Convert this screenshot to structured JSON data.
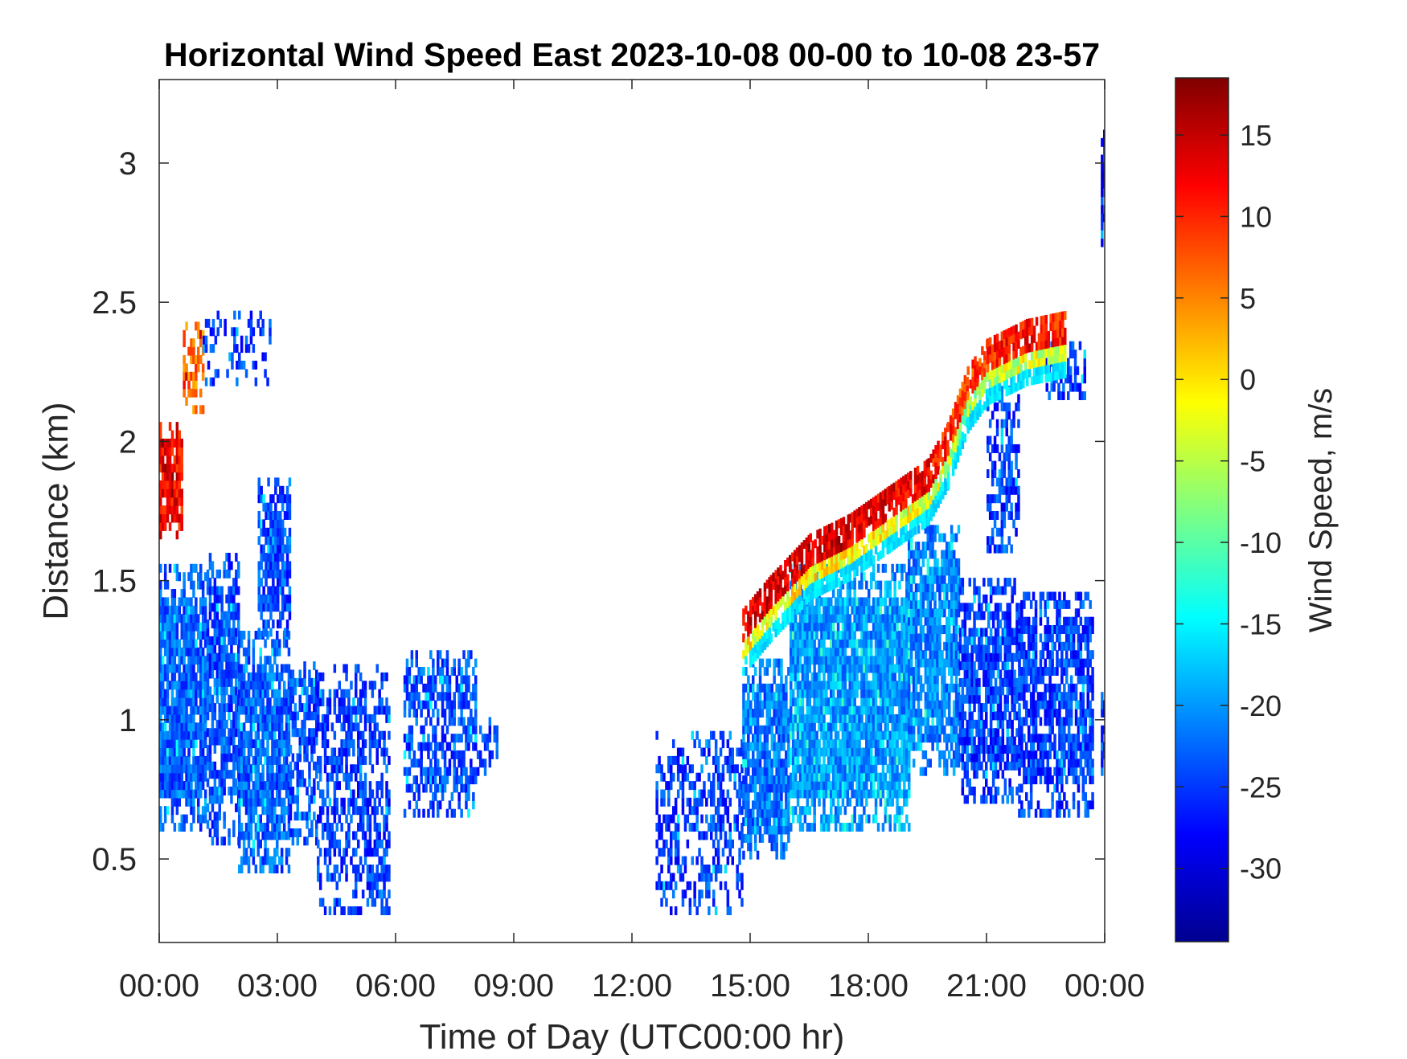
{
  "chart_data": {
    "type": "heatmap",
    "title": "Horizontal Wind Speed East 2023-10-08 00-00 to 10-08 23-57",
    "xlabel": "Time of Day (UTC00:00 hr)",
    "ylabel": "Distance (km)",
    "colorbar_label": "Wind Speed, m/s",
    "xlim": [
      0,
      24
    ],
    "ylim": [
      0.2,
      3.3
    ],
    "clim": [
      -34.5,
      18.5
    ],
    "colormap": "jet",
    "x_ticks": [
      0,
      3,
      6,
      9,
      12,
      15,
      18,
      21,
      24
    ],
    "x_tick_labels": [
      "00:00",
      "03:00",
      "06:00",
      "09:00",
      "12:00",
      "15:00",
      "18:00",
      "21:00",
      "00:00"
    ],
    "y_ticks": [
      0.5,
      1,
      1.5,
      2,
      2.5,
      3
    ],
    "y_tick_labels": [
      "0.5",
      "1",
      "1.5",
      "2",
      "2.5",
      "3"
    ],
    "colorbar_ticks": [
      15,
      10,
      5,
      0,
      -5,
      -10,
      -15,
      -20,
      -25,
      -30
    ],
    "colorbar_tick_labels": [
      "15",
      "10",
      "5",
      "0",
      "-5",
      "-10",
      "-15",
      "-20",
      "-25",
      "-30"
    ],
    "regions": [
      {
        "t": [
          0.0,
          1.2
        ],
        "h": [
          0.6,
          1.55
        ],
        "speed": -23,
        "density": 0.92
      },
      {
        "t": [
          1.2,
          2.0
        ],
        "h": [
          0.55,
          1.6
        ],
        "speed": -24,
        "density": 0.8
      },
      {
        "t": [
          2.0,
          3.3
        ],
        "h": [
          0.45,
          1.3
        ],
        "speed": -23,
        "density": 0.85
      },
      {
        "t": [
          2.5,
          3.3
        ],
        "h": [
          1.3,
          1.85
        ],
        "speed": -24,
        "density": 0.8
      },
      {
        "t": [
          3.3,
          4.0
        ],
        "h": [
          0.55,
          1.2
        ],
        "speed": -24,
        "density": 0.65
      },
      {
        "t": [
          4.0,
          5.8
        ],
        "h": [
          0.3,
          1.2
        ],
        "speed": -25,
        "density": 0.55
      },
      {
        "t": [
          6.2,
          8.0
        ],
        "h": [
          0.65,
          1.25
        ],
        "speed": -24,
        "density": 0.6
      },
      {
        "t": [
          8.0,
          8.6
        ],
        "h": [
          0.8,
          1.0
        ],
        "speed": -25,
        "density": 0.4
      },
      {
        "t": [
          12.6,
          14.8
        ],
        "h": [
          0.3,
          0.95
        ],
        "speed": -25,
        "density": 0.45
      },
      {
        "t": [
          14.8,
          16.0
        ],
        "h": [
          0.5,
          1.2
        ],
        "speed": -22,
        "density": 0.85
      },
      {
        "t": [
          16.0,
          19.0
        ],
        "h": [
          0.6,
          1.55
        ],
        "speed": -20,
        "density": 0.92
      },
      {
        "t": [
          19.0,
          20.3
        ],
        "h": [
          0.8,
          1.7
        ],
        "speed": -21,
        "density": 0.85
      },
      {
        "t": [
          20.3,
          21.8
        ],
        "h": [
          0.7,
          1.5
        ],
        "speed": -25,
        "density": 0.75
      },
      {
        "t": [
          21.0,
          21.8
        ],
        "h": [
          1.6,
          2.2
        ],
        "speed": -25,
        "density": 0.55
      },
      {
        "t": [
          21.8,
          23.7
        ],
        "h": [
          0.65,
          1.45
        ],
        "speed": -25,
        "density": 0.75
      },
      {
        "t": [
          22.5,
          23.5
        ],
        "h": [
          2.15,
          2.35
        ],
        "speed": -25,
        "density": 0.55
      },
      {
        "t": [
          0.0,
          0.6
        ],
        "h": [
          1.65,
          2.05
        ],
        "speed": 12,
        "density": 0.85
      },
      {
        "t": [
          0.6,
          1.1
        ],
        "h": [
          2.1,
          2.4
        ],
        "speed": 6,
        "density": 0.65
      },
      {
        "t": [
          1.1,
          2.8
        ],
        "h": [
          2.2,
          2.45
        ],
        "speed": -25,
        "density": 0.3
      },
      {
        "t": [
          23.9,
          24.0
        ],
        "h": [
          2.7,
          3.1
        ],
        "speed": -27,
        "density": 0.9
      },
      {
        "t": [
          23.9,
          24.0
        ],
        "h": [
          0.8,
          1.1
        ],
        "speed": -25,
        "density": 0.9
      }
    ],
    "boundary_layer_top": [
      {
        "t": 14.8,
        "h": 1.28,
        "speed": 14
      },
      {
        "t": 15.5,
        "h": 1.4,
        "speed": 14
      },
      {
        "t": 16.5,
        "h": 1.55,
        "speed": 14
      },
      {
        "t": 17.5,
        "h": 1.62,
        "speed": 14
      },
      {
        "t": 18.5,
        "h": 1.72,
        "speed": 13
      },
      {
        "t": 19.5,
        "h": 1.82,
        "speed": 12
      },
      {
        "t": 20.0,
        "h": 1.95,
        "speed": 10
      },
      {
        "t": 20.5,
        "h": 2.15,
        "speed": 8
      },
      {
        "t": 21.0,
        "h": 2.25,
        "speed": 10
      },
      {
        "t": 22.0,
        "h": 2.32,
        "speed": 12
      },
      {
        "t": 23.0,
        "h": 2.35,
        "speed": 10
      }
    ]
  }
}
